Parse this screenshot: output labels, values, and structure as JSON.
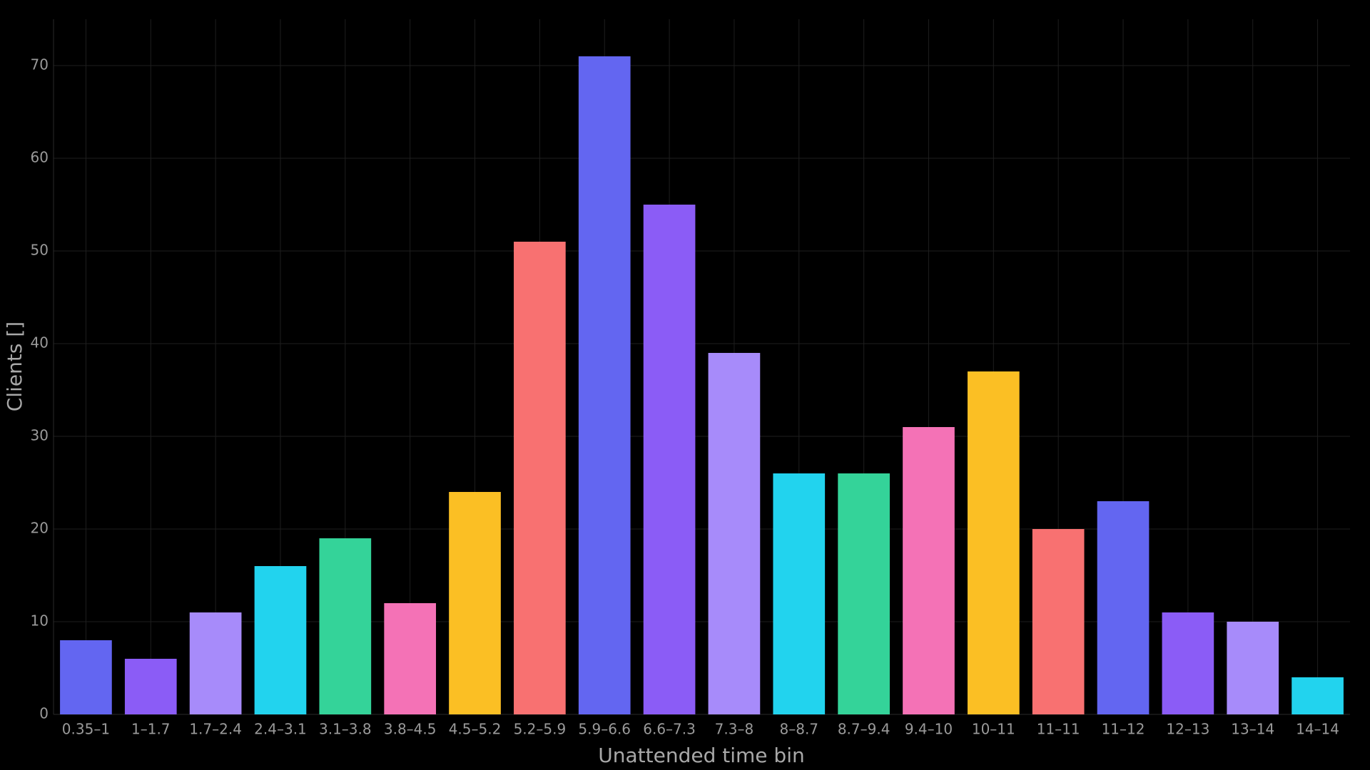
{
  "chart_data": {
    "type": "bar",
    "x_label": "Unattended time bin",
    "y_label": "Clients []",
    "categories": [
      "0.35–1",
      "1–1.7",
      "1.7–2.4",
      "2.4–3.1",
      "3.1–3.8",
      "3.8–4.5",
      "4.5–5.2",
      "5.2–5.9",
      "5.9–6.6",
      "6.6–7.3",
      "7.3–8",
      "8–8.7",
      "8.7–9.4",
      "9.4–10",
      "10–11",
      "11–11",
      "11–12",
      "12–13",
      "13–14",
      "14–14"
    ],
    "values": [
      8,
      6,
      11,
      16,
      19,
      12,
      24,
      51,
      71,
      55,
      39,
      26,
      26,
      31,
      37,
      20,
      23,
      11,
      10,
      4
    ],
    "colors": [
      "#6366f1",
      "#8b5cf6",
      "#a78bfa",
      "#22d3ee",
      "#34d399",
      "#f472b6",
      "#fbbf24",
      "#f87171"
    ],
    "ylim": [
      0,
      75
    ],
    "yticks": [
      0,
      10,
      20,
      30,
      40,
      50,
      60,
      70
    ],
    "grid": true
  }
}
